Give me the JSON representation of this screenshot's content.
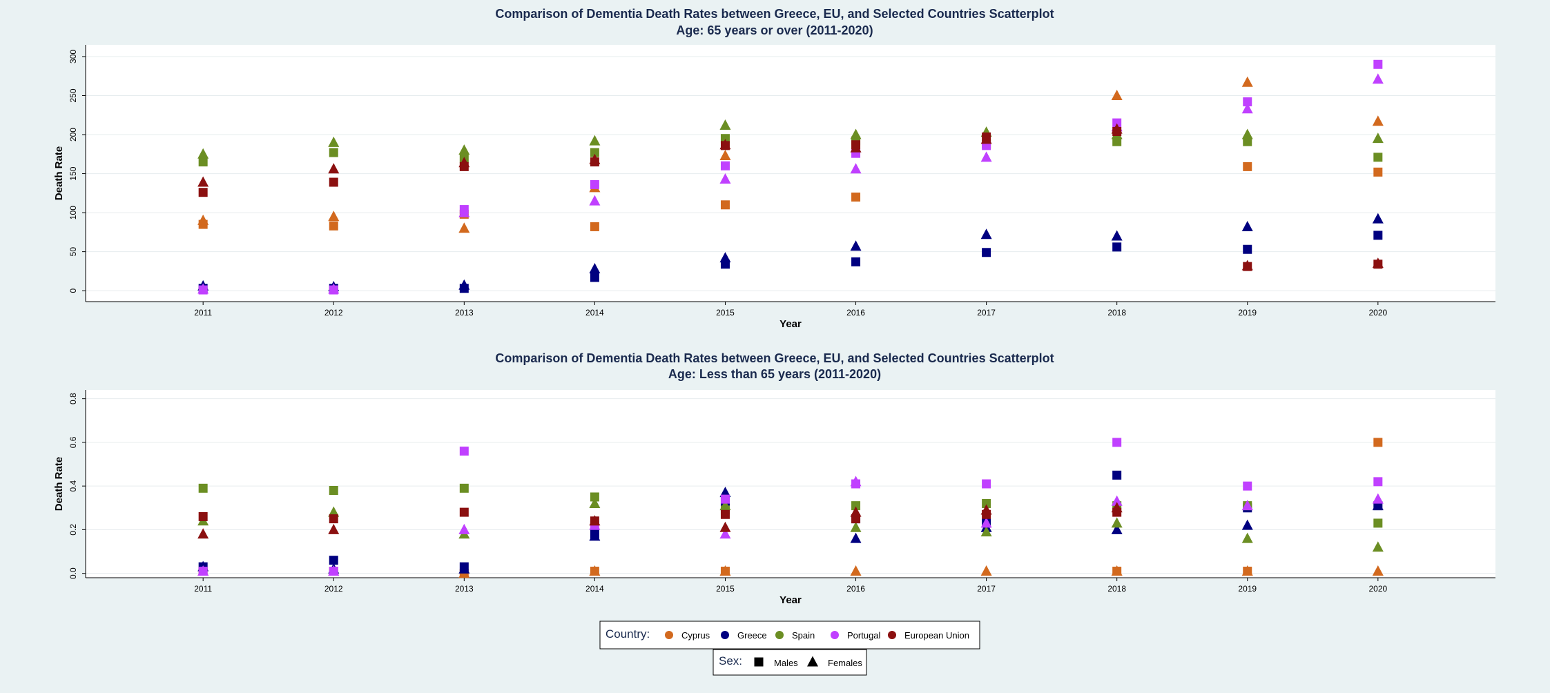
{
  "chart_data": [
    {
      "type": "scatter",
      "title": "Comparison of Dementia Death Rates between Greece, EU, and Selected Countries Scatterplot",
      "subtitle": "Age: 65 years or over (2011-2020)",
      "xlabel": "Year",
      "ylabel": "Death Rate",
      "x": [
        2011,
        2012,
        2013,
        2014,
        2015,
        2016,
        2017,
        2018,
        2019,
        2020
      ],
      "xlim": [
        2010.1,
        2020.9
      ],
      "ylim": [
        -14,
        315
      ],
      "yticks": [
        0,
        50,
        100,
        150,
        200,
        250,
        300
      ],
      "ytick_labels": [
        "0",
        "50",
        "100",
        "150",
        "200",
        "250",
        "300"
      ],
      "grid": true,
      "series": [
        {
          "name": "Cyprus Males",
          "country": "Cyprus",
          "sex": "Males",
          "values": [
            85,
            83,
            98,
            82,
            110,
            120,
            null,
            null,
            159,
            152
          ]
        },
        {
          "name": "Cyprus Females",
          "country": "Cyprus",
          "sex": "Females",
          "values": [
            90,
            95,
            80,
            132,
            173,
            null,
            null,
            250,
            267,
            217
          ]
        },
        {
          "name": "Greece Males",
          "country": "Greece",
          "sex": "Males",
          "values": [
            3,
            3,
            3,
            17,
            34,
            37,
            49,
            56,
            53,
            71
          ]
        },
        {
          "name": "Greece Females",
          "country": "Greece",
          "sex": "Females",
          "values": [
            6,
            5,
            7,
            28,
            42,
            57,
            72,
            70,
            82,
            92
          ]
        },
        {
          "name": "Spain Males",
          "country": "Spain",
          "sex": "Males",
          "values": [
            165,
            177,
            170,
            177,
            195,
            192,
            188,
            191,
            191,
            171
          ]
        },
        {
          "name": "Spain Females",
          "country": "Spain",
          "sex": "Females",
          "values": [
            175,
            190,
            180,
            192,
            212,
            200,
            203,
            200,
            200,
            195
          ]
        },
        {
          "name": "Portugal Males",
          "country": "Portugal",
          "sex": "Males",
          "values": [
            1,
            1,
            104,
            136,
            160,
            176,
            186,
            215,
            242,
            290
          ]
        },
        {
          "name": "Portugal Females",
          "country": "Portugal",
          "sex": "Females",
          "values": [
            2,
            2,
            100,
            115,
            143,
            156,
            171,
            210,
            233,
            271
          ]
        },
        {
          "name": "European Union Males",
          "country": "European Union",
          "sex": "Males",
          "values": [
            126,
            139,
            159,
            165,
            186,
            187,
            197,
            204,
            31,
            34
          ]
        },
        {
          "name": "European Union Females",
          "country": "European Union",
          "sex": "Females",
          "values": [
            139,
            156,
            164,
            168,
            187,
            183,
            194,
            207,
            32,
            35
          ]
        }
      ]
    },
    {
      "type": "scatter",
      "title": "Comparison of Dementia Death Rates between Greece, EU, and Selected Countries Scatterplot",
      "subtitle": "Age: Less than 65 years (2011-2020)",
      "xlabel": "Year",
      "ylabel": "Death Rate",
      "x": [
        2011,
        2012,
        2013,
        2014,
        2015,
        2016,
        2017,
        2018,
        2019,
        2020
      ],
      "xlim": [
        2010.1,
        2020.9
      ],
      "ylim": [
        -0.02,
        0.84
      ],
      "yticks": [
        0,
        0.2,
        0.4,
        0.6,
        0.8
      ],
      "ytick_labels": [
        "0.0",
        "0.2",
        "0.4",
        "0.6",
        "0.8"
      ],
      "grid": true,
      "series": [
        {
          "name": "Cyprus Males",
          "country": "Cyprus",
          "sex": "Males",
          "values": [
            0.01,
            0.01,
            0.0,
            0.01,
            0.01,
            null,
            null,
            0.01,
            0.01,
            0.6
          ]
        },
        {
          "name": "Cyprus Females",
          "country": "Cyprus",
          "sex": "Females",
          "values": [
            0.01,
            0.01,
            0.0,
            0.01,
            0.01,
            0.01,
            0.01,
            0.01,
            0.01,
            0.01
          ]
        },
        {
          "name": "Greece Males",
          "country": "Greece",
          "sex": "Males",
          "values": [
            0.03,
            0.06,
            0.03,
            0.18,
            0.33,
            0.25,
            0.23,
            0.45,
            0.3,
            0.31
          ]
        },
        {
          "name": "Greece Females",
          "country": "Greece",
          "sex": "Females",
          "values": [
            0.03,
            0.02,
            0.02,
            0.17,
            0.37,
            0.16,
            0.21,
            0.2,
            0.22,
            0.31
          ]
        },
        {
          "name": "Spain Males",
          "country": "Spain",
          "sex": "Males",
          "values": [
            0.39,
            0.38,
            0.39,
            0.35,
            0.29,
            0.31,
            0.32,
            0.31,
            0.31,
            0.23
          ]
        },
        {
          "name": "Spain Females",
          "country": "Spain",
          "sex": "Females",
          "values": [
            0.24,
            0.28,
            0.18,
            0.32,
            0.31,
            0.21,
            0.19,
            0.23,
            0.16,
            0.12
          ]
        },
        {
          "name": "Portugal Males",
          "country": "Portugal",
          "sex": "Males",
          "values": [
            0.01,
            0.01,
            0.56,
            0.22,
            0.34,
            0.41,
            0.41,
            0.6,
            0.4,
            0.42
          ]
        },
        {
          "name": "Portugal Females",
          "country": "Portugal",
          "sex": "Females",
          "values": [
            0.01,
            0.01,
            0.2,
            0.22,
            0.18,
            0.42,
            0.23,
            0.33,
            0.31,
            0.34
          ]
        },
        {
          "name": "European Union Males",
          "country": "European Union",
          "sex": "Males",
          "values": [
            0.26,
            0.25,
            0.28,
            0.24,
            0.27,
            0.25,
            0.27,
            0.28,
            null,
            null
          ]
        },
        {
          "name": "European Union Females",
          "country": "European Union",
          "sex": "Females",
          "values": [
            0.18,
            0.2,
            null,
            0.24,
            0.21,
            0.28,
            0.29,
            0.3,
            null,
            null
          ]
        }
      ]
    }
  ],
  "legend": {
    "country_title": "Country:",
    "countries": [
      {
        "label": "Cyprus",
        "color": "#d2691e"
      },
      {
        "label": "Greece",
        "color": "#000080"
      },
      {
        "label": "Spain",
        "color": "#6b8e23"
      },
      {
        "label": "Portugal",
        "color": "#c040ff"
      },
      {
        "label": "European Union",
        "color": "#8b1010"
      }
    ],
    "sex_title": "Sex:",
    "sexes": [
      {
        "label": "Males",
        "marker": "square"
      },
      {
        "label": "Females",
        "marker": "triangle"
      }
    ]
  }
}
